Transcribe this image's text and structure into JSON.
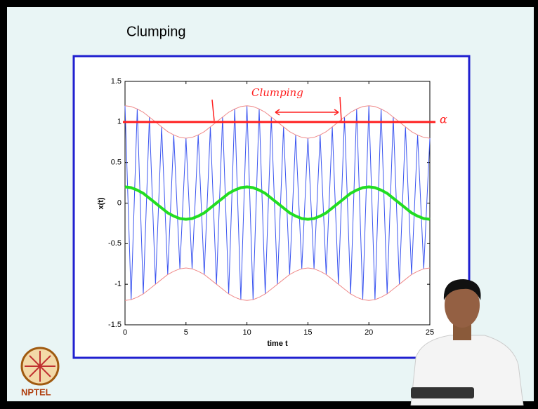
{
  "chart_data": {
    "type": "line",
    "title": "Clumping",
    "xlabel": "time t",
    "ylabel": "x(t)",
    "x": [
      0,
      0.5,
      1,
      1.5,
      2,
      2.5,
      3,
      3.5,
      4,
      4.5,
      5,
      5.5,
      6,
      6.5,
      7,
      7.5,
      8,
      8.5,
      9,
      9.5,
      10,
      10.5,
      11,
      11.5,
      12,
      12.5,
      13,
      13.5,
      14,
      14.5,
      15,
      15.5,
      16,
      16.5,
      17,
      17.5,
      18,
      18.5,
      19,
      19.5,
      20,
      20.5,
      21,
      21.5,
      22,
      22.5,
      23,
      23.5,
      24,
      24.5,
      25
    ],
    "series": [
      {
        "color": "#3b55f0",
        "values": [
          1.2,
          -1.19,
          1.16,
          -1.12,
          1.06,
          -1,
          0.94,
          -0.88,
          0.84,
          -0.81,
          0.8,
          -0.81,
          0.84,
          -0.88,
          0.94,
          -1,
          1.06,
          -1.12,
          1.16,
          -1.19,
          1.2,
          -1.19,
          1.16,
          -1.12,
          1.06,
          -1,
          0.94,
          -0.88,
          0.84,
          -0.81,
          0.8,
          -0.81,
          0.84,
          -0.88,
          0.94,
          -1,
          1.06,
          -1.12,
          1.16,
          -1.19,
          1.2,
          -1.19,
          1.16,
          -1.12,
          1.06,
          -1,
          0.94,
          -0.88,
          0.84,
          -0.81,
          0.8
        ]
      },
      {
        "color": "#f08a8a",
        "values": [
          1.2,
          1.19,
          1.16,
          1.12,
          1.06,
          1,
          0.94,
          0.88,
          0.84,
          0.81,
          0.8,
          0.81,
          0.84,
          0.88,
          0.94,
          1,
          1.06,
          1.12,
          1.16,
          1.19,
          1.2,
          1.19,
          1.16,
          1.12,
          1.06,
          1,
          0.94,
          0.88,
          0.84,
          0.81,
          0.8,
          0.81,
          0.84,
          0.88,
          0.94,
          1,
          1.06,
          1.12,
          1.16,
          1.19,
          1.2,
          1.19,
          1.16,
          1.12,
          1.06,
          1,
          0.94,
          0.88,
          0.84,
          0.81,
          0.8
        ]
      },
      {
        "color": "#f08a8a",
        "values": [
          -1.2,
          -1.19,
          -1.16,
          -1.12,
          -1.06,
          -1,
          -0.94,
          -0.88,
          -0.84,
          -0.81,
          -0.8,
          -0.81,
          -0.84,
          -0.88,
          -0.94,
          -1,
          -1.06,
          -1.12,
          -1.16,
          -1.19,
          -1.2,
          -1.19,
          -1.16,
          -1.12,
          -1.06,
          -1,
          -0.94,
          -0.88,
          -0.84,
          -0.81,
          -0.8,
          -0.81,
          -0.84,
          -0.88,
          -0.94,
          -1,
          -1.06,
          -1.12,
          -1.16,
          -1.19,
          -1.2,
          -1.19,
          -1.16,
          -1.12,
          -1.06,
          -1,
          -0.94,
          -0.88,
          -0.84,
          -0.81,
          -0.8
        ]
      },
      {
        "color": "#22dd22",
        "values": [
          0.2,
          0.19,
          0.16,
          0.12,
          0.06,
          0,
          -0.06,
          -0.12,
          -0.16,
          -0.19,
          -0.2,
          -0.19,
          -0.16,
          -0.12,
          -0.06,
          0,
          0.06,
          0.12,
          0.16,
          0.19,
          0.2,
          0.19,
          0.16,
          0.12,
          0.06,
          0,
          -0.06,
          -0.12,
          -0.16,
          -0.19,
          -0.2,
          -0.19,
          -0.16,
          -0.12,
          -0.06,
          0,
          0.06,
          0.12,
          0.16,
          0.19,
          0.2,
          0.19,
          0.16,
          0.12,
          0.06,
          0,
          -0.06,
          -0.12,
          -0.16,
          -0.19,
          -0.2
        ]
      }
    ],
    "hline": {
      "value": 1,
      "color": "#ff2020"
    },
    "annotations": [
      "Clumping",
      "α"
    ],
    "xlim": [
      0,
      25
    ],
    "ylim": [
      -1.5,
      1.5
    ],
    "xticks": [
      0,
      5,
      10,
      15,
      20,
      25
    ],
    "yticks": [
      -1.5,
      -1,
      -0.5,
      0,
      0.5,
      1,
      1.5
    ]
  },
  "logo": "NPTEL"
}
